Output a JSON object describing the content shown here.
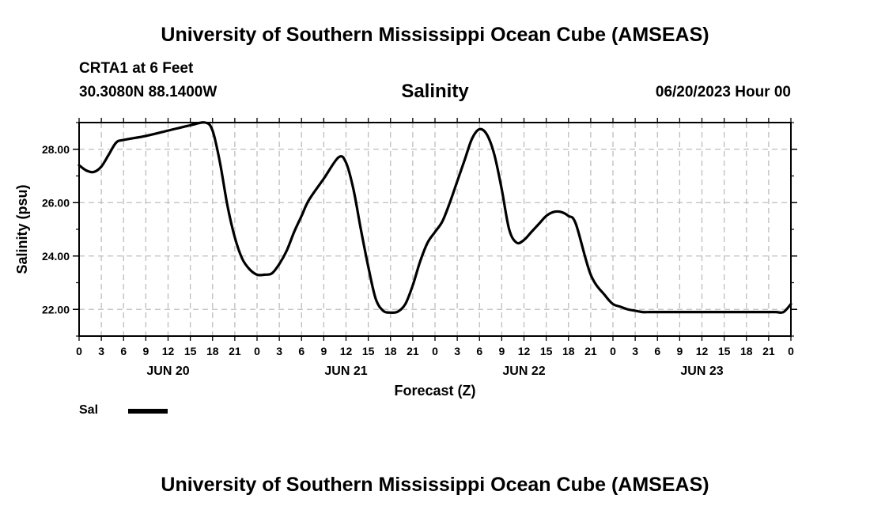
{
  "header": {
    "title": "University of Southern Mississippi Ocean Cube (AMSEAS)",
    "station": "CRTA1 at 6 Feet",
    "coordinates": "30.3080N  88.1400W",
    "chart_title": "Salinity",
    "datetime": "06/20/2023 Hour 00"
  },
  "footer": {
    "title": "University of Southern Mississippi Ocean Cube (AMSEAS)"
  },
  "legend": {
    "label": "Sal",
    "color": "#000000"
  },
  "chart_data": {
    "type": "line",
    "title": "Salinity",
    "xlabel": "Forecast (Z)",
    "ylabel": "Salinity (psu)",
    "xlim": [
      0,
      96
    ],
    "ylim": [
      21.0,
      29.0
    ],
    "grid": true,
    "legend_position": "bottom-left",
    "y_ticks": [
      22.0,
      24.0,
      26.0,
      28.0
    ],
    "y_tick_labels": [
      "22.00",
      "24.00",
      "26.00",
      "28.00"
    ],
    "x_ticks": [
      0,
      3,
      6,
      9,
      12,
      15,
      18,
      21,
      24,
      27,
      30,
      33,
      36,
      39,
      42,
      45,
      48,
      51,
      54,
      57,
      60,
      63,
      66,
      69,
      72,
      75,
      78,
      81,
      84,
      87,
      90,
      93,
      96
    ],
    "x_tick_labels": [
      "0",
      "3",
      "6",
      "9",
      "12",
      "15",
      "18",
      "21",
      "0",
      "3",
      "6",
      "9",
      "12",
      "15",
      "18",
      "21",
      "0",
      "3",
      "6",
      "9",
      "12",
      "15",
      "18",
      "21",
      "0",
      "3",
      "6",
      "9",
      "12",
      "15",
      "18",
      "21",
      "0"
    ],
    "day_labels": [
      {
        "label": "JUN 20",
        "hour": 12
      },
      {
        "label": "JUN 21",
        "hour": 36
      },
      {
        "label": "JUN 22",
        "hour": 60
      },
      {
        "label": "JUN 23",
        "hour": 84
      }
    ],
    "series": [
      {
        "name": "Sal",
        "color": "#000000",
        "x": [
          0,
          1,
          2,
          3,
          4,
          5,
          6,
          9,
          12,
          15,
          17,
          18,
          19,
          20,
          21,
          22,
          23,
          24,
          25,
          26,
          27,
          28,
          29,
          30,
          31,
          33,
          35,
          36,
          37,
          38,
          39,
          40,
          41,
          42,
          43,
          44,
          45,
          46,
          47,
          48,
          49,
          50,
          51,
          52,
          53,
          54,
          55,
          56,
          57,
          58,
          59,
          60,
          61,
          62,
          63,
          64,
          65,
          66,
          67,
          69,
          71,
          72,
          73,
          74,
          75,
          76,
          77,
          78,
          79,
          80,
          81,
          82,
          83,
          84,
          85,
          86,
          87,
          88,
          89,
          90,
          91,
          92,
          93,
          94,
          95,
          96
        ],
        "values": [
          27.4,
          27.2,
          27.15,
          27.35,
          27.8,
          28.25,
          28.35,
          28.5,
          28.7,
          28.9,
          29.0,
          28.7,
          27.5,
          25.9,
          24.7,
          23.9,
          23.5,
          23.3,
          23.3,
          23.35,
          23.7,
          24.2,
          24.9,
          25.5,
          26.1,
          26.9,
          27.7,
          27.5,
          26.5,
          25.0,
          23.6,
          22.4,
          21.95,
          21.88,
          21.92,
          22.2,
          22.9,
          23.8,
          24.5,
          24.9,
          25.3,
          26.0,
          26.8,
          27.6,
          28.4,
          28.75,
          28.55,
          27.8,
          26.5,
          25.0,
          24.5,
          24.6,
          24.9,
          25.2,
          25.5,
          25.65,
          25.65,
          25.5,
          25.2,
          23.3,
          22.5,
          22.2,
          22.1,
          22.0,
          21.95,
          21.9,
          21.9,
          21.9,
          21.9,
          21.9,
          21.9,
          21.9,
          21.9,
          21.9,
          21.9,
          21.9,
          21.9,
          21.9,
          21.9,
          21.9,
          21.9,
          21.9,
          21.9,
          21.9,
          21.9,
          22.2
        ]
      }
    ]
  }
}
